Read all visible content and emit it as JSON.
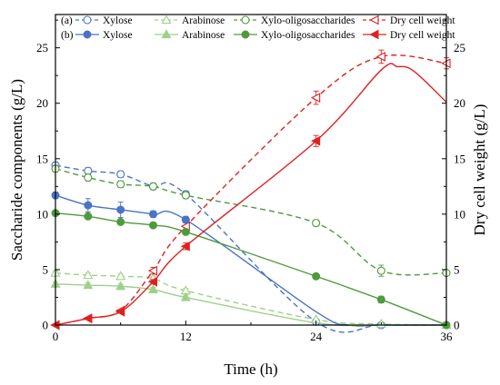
{
  "chart_data": {
    "type": "line",
    "xlabel": "Time (h)",
    "ylabel": "Saccharide components (g/L)",
    "y2label": "Dry cell weight (g/L)",
    "xlim": [
      0,
      36
    ],
    "ylim": [
      0,
      28
    ],
    "y2lim": [
      0,
      28
    ],
    "x_ticks": [
      0,
      12,
      24,
      36
    ],
    "y_ticks": [
      0,
      5,
      10,
      15,
      20,
      25
    ],
    "y2_ticks": [
      0,
      5,
      10,
      15,
      20,
      25
    ],
    "grid": false,
    "legend_position": "top",
    "legend_groups": [
      "(a)",
      "(b)"
    ],
    "series": [
      {
        "name": "Xylose",
        "group": "(a)",
        "axis": "left",
        "color": "#4a74c4",
        "marker": "open-circle",
        "dash": true,
        "x": [
          0,
          3,
          6,
          9,
          12,
          24,
          30,
          36
        ],
        "y": [
          14.4,
          13.9,
          13.6,
          12.5,
          11.8,
          0.3,
          0,
          0
        ],
        "err": [
          0.3,
          0.3,
          0.3,
          0.3,
          0.3,
          0.1,
          0,
          0
        ]
      },
      {
        "name": "Arabinose",
        "group": "(a)",
        "axis": "left",
        "color": "#9fd08a",
        "marker": "open-triangle",
        "dash": true,
        "x": [
          0,
          3,
          6,
          9,
          12,
          24,
          30,
          36
        ],
        "y": [
          4.7,
          4.5,
          4.4,
          4.2,
          3.1,
          0.5,
          0.1,
          0
        ],
        "err": [
          0.2,
          0.2,
          0.2,
          0.2,
          0.2,
          0.1,
          0,
          0
        ]
      },
      {
        "name": "Xylo-oligosaccharides",
        "group": "(a)",
        "axis": "left",
        "color": "#4f9a3c",
        "marker": "open-circle",
        "dash": true,
        "x": [
          0,
          3,
          6,
          9,
          12,
          24,
          30,
          36
        ],
        "y": [
          14.1,
          13.3,
          12.7,
          12.5,
          11.7,
          9.2,
          4.9,
          4.7
        ],
        "err": [
          0.3,
          0.3,
          0.3,
          0.3,
          0.3,
          0.3,
          0.5,
          0.2
        ]
      },
      {
        "name": "Dry cell weight",
        "group": "(a)",
        "axis": "right",
        "color": "#e02020",
        "marker": "open-triangle-left",
        "dash": true,
        "x": [
          0,
          3,
          6,
          9,
          12,
          24,
          30,
          36
        ],
        "y": [
          0,
          0.6,
          1.3,
          4.9,
          8.9,
          20.5,
          24.2,
          23.6
        ],
        "err": [
          0,
          0.1,
          0.1,
          0.3,
          0.4,
          0.6,
          0.6,
          0.5
        ]
      },
      {
        "name": "Xylose",
        "group": "(b)",
        "axis": "left",
        "color": "#4a74c4",
        "marker": "filled-circle",
        "dash": false,
        "x": [
          0,
          3,
          6,
          9,
          12,
          24,
          27,
          30,
          36
        ],
        "y": [
          11.7,
          10.8,
          10.4,
          10.0,
          9.5,
          1.2,
          0,
          0,
          0
        ],
        "err": [
          0.3,
          0.6,
          0.7,
          0.3,
          0.3,
          0,
          0,
          0,
          0
        ],
        "marker_count": 5
      },
      {
        "name": "Arabinose",
        "group": "(b)",
        "axis": "left",
        "color": "#9fd08a",
        "marker": "filled-triangle",
        "dash": false,
        "x": [
          0,
          3,
          6,
          9,
          12,
          24,
          30,
          36
        ],
        "y": [
          3.7,
          3.6,
          3.5,
          3.2,
          2.5,
          0.2,
          0,
          0
        ],
        "err": [
          0.2,
          0.2,
          0.2,
          0.2,
          0.2,
          0,
          0,
          0
        ],
        "marker_count": 5
      },
      {
        "name": "Xylo-oligosaccharides",
        "group": "(b)",
        "axis": "left",
        "color": "#4f9a3c",
        "marker": "filled-circle",
        "dash": false,
        "x": [
          0,
          3,
          6,
          9,
          12,
          24,
          30,
          36
        ],
        "y": [
          10.1,
          9.8,
          9.3,
          9.0,
          8.4,
          4.4,
          2.3,
          0
        ],
        "err": [
          0.2,
          0.2,
          0.2,
          0.2,
          0.2,
          0.2,
          0.3,
          0
        ]
      },
      {
        "name": "Dry cell weight",
        "group": "(b)",
        "axis": "right",
        "color": "#e02020",
        "marker": "filled-triangle-left",
        "dash": false,
        "x": [
          0,
          3,
          6,
          9,
          12,
          24,
          30,
          31.5,
          33,
          36
        ],
        "y": [
          0,
          0.6,
          1.2,
          3.9,
          7.1,
          16.6,
          23.0,
          23.3,
          22.9,
          20.1
        ],
        "err": [
          0,
          0.1,
          0.1,
          0.2,
          0.3,
          0.5,
          0,
          0,
          0,
          0
        ],
        "marker_count": 6
      }
    ]
  }
}
